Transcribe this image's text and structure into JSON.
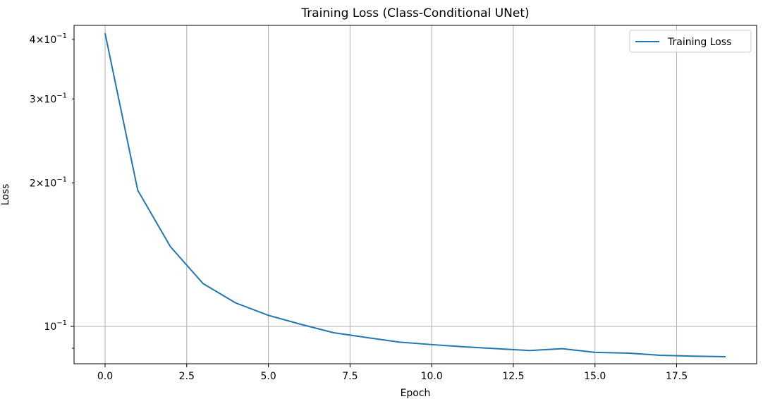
{
  "chart_data": {
    "type": "line",
    "title": "Training Loss (Class-Conditional UNet)",
    "xlabel": "Epoch",
    "ylabel": "Loss",
    "xscale": "linear",
    "yscale": "log",
    "xlim": [
      -0.95,
      19.95
    ],
    "ylim": [
      0.0835,
      0.428
    ],
    "grid": true,
    "legend": "top-right",
    "x_ticks": [
      0.0,
      2.5,
      5.0,
      7.5,
      10.0,
      12.5,
      15.0,
      17.5
    ],
    "x_tick_labels": [
      "0.0",
      "2.5",
      "5.0",
      "7.5",
      "10.0",
      "12.5",
      "15.0",
      "17.5"
    ],
    "y_major_ticks": [
      {
        "value": 0.1,
        "base": "10",
        "exp": "−1"
      }
    ],
    "y_minor_ticks": [
      {
        "value": 0.2,
        "coef": "2",
        "base": "10",
        "exp": "−1"
      },
      {
        "value": 0.3,
        "coef": "3",
        "base": "10",
        "exp": "−1"
      },
      {
        "value": 0.4,
        "coef": "4",
        "base": "10",
        "exp": "−1"
      },
      {
        "value": 0.09
      }
    ],
    "series": [
      {
        "name": "Training Loss",
        "color": "#1f77b4",
        "x": [
          0,
          1,
          2,
          3,
          4,
          5,
          6,
          7,
          8,
          9,
          10,
          11,
          12,
          13,
          14,
          15,
          16,
          17,
          18,
          19
        ],
        "y": [
          0.412,
          0.193,
          0.147,
          0.123,
          0.112,
          0.1055,
          0.101,
          0.097,
          0.0948,
          0.0927,
          0.0916,
          0.0906,
          0.0898,
          0.089,
          0.0898,
          0.0882,
          0.0879,
          0.087,
          0.0866,
          0.0864
        ]
      }
    ]
  }
}
